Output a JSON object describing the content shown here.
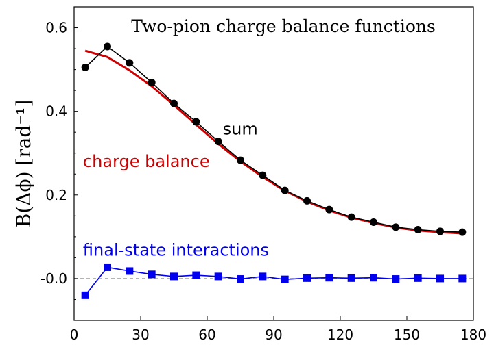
{
  "chart_data": {
    "type": "line",
    "title": "Two-pion charge balance functions",
    "ylabel": "B(Δϕ) [rad⁻¹]",
    "xlim": [
      0,
      180
    ],
    "ylim": [
      -0.1,
      0.65
    ],
    "xticks": [
      0,
      30,
      60,
      90,
      120,
      150,
      180
    ],
    "xtick_labels": [
      "0",
      "30",
      "60",
      "90",
      "120",
      "150",
      "180"
    ],
    "yticks": [
      -0.0,
      0.2,
      0.4,
      0.6
    ],
    "ytick_labels": [
      "-0.0",
      "0.2",
      "0.4",
      "0.6"
    ],
    "reference_line": {
      "y": 0.0,
      "style": "dashed",
      "color": "#888888"
    },
    "series": [
      {
        "name": "charge balance",
        "color": "#cc0000",
        "marker": "none",
        "x": [
          5,
          15,
          25,
          35,
          45,
          55,
          65,
          75,
          85,
          95,
          105,
          115,
          125,
          135,
          145,
          155,
          165,
          175
        ],
        "y": [
          0.545,
          0.53,
          0.498,
          0.46,
          0.415,
          0.368,
          0.322,
          0.28,
          0.243,
          0.21,
          0.184,
          0.163,
          0.146,
          0.133,
          0.122,
          0.115,
          0.111,
          0.108
        ]
      },
      {
        "name": "sum",
        "color": "#000000",
        "marker": "circle",
        "x": [
          5,
          15,
          25,
          35,
          45,
          55,
          65,
          75,
          85,
          95,
          105,
          115,
          125,
          135,
          145,
          155,
          165,
          175
        ],
        "y": [
          0.505,
          0.555,
          0.516,
          0.469,
          0.419,
          0.375,
          0.328,
          0.283,
          0.247,
          0.211,
          0.186,
          0.165,
          0.147,
          0.135,
          0.123,
          0.117,
          0.113,
          0.111
        ]
      },
      {
        "name": "final-state interactions",
        "color": "#0000ee",
        "marker": "square",
        "x": [
          5,
          15,
          25,
          35,
          45,
          55,
          65,
          75,
          85,
          95,
          105,
          115,
          125,
          135,
          145,
          155,
          165,
          175
        ],
        "y": [
          -0.04,
          0.027,
          0.018,
          0.01,
          0.005,
          0.008,
          0.005,
          -0.001,
          0.005,
          -0.002,
          0.001,
          0.002,
          0.001,
          0.002,
          -0.001,
          0.001,
          0.0,
          0.0
        ]
      }
    ],
    "annotations": [
      {
        "text": "sum",
        "color": "#000000",
        "x": 67,
        "y": 0.345
      },
      {
        "text": "charge balance",
        "color": "#cc0000",
        "x": 4,
        "y": 0.267
      },
      {
        "text": "final-state interactions",
        "color": "#0000ee",
        "x": 4,
        "y": 0.055
      }
    ]
  }
}
